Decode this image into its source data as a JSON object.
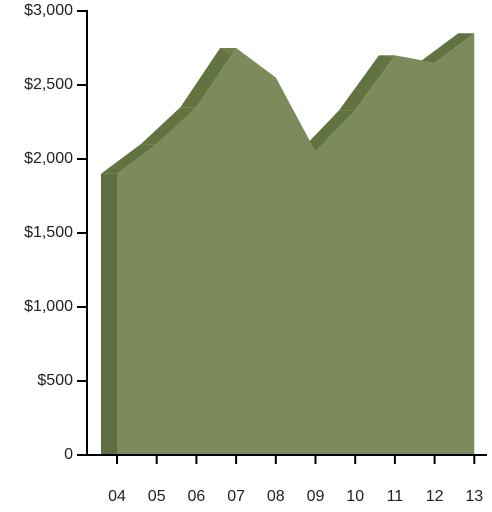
{
  "chart_data": {
    "type": "area",
    "categories": [
      "04",
      "05",
      "06",
      "07",
      "08",
      "09",
      "10",
      "11",
      "12",
      "13"
    ],
    "values": [
      1900,
      2100,
      2350,
      2750,
      2550,
      2050,
      2330,
      2700,
      2650,
      2850
    ],
    "color": "#7d8b5c",
    "ylim": [
      0,
      3000
    ],
    "yticks": [
      0,
      {
        "value": 500,
        "label": "$500"
      },
      {
        "value": 1000,
        "label": "$1,000"
      },
      {
        "value": 1500,
        "label": "$1,500"
      },
      {
        "value": 2000,
        "label": "$2,000"
      },
      {
        "value": 2500,
        "label": "$2,500"
      },
      {
        "value": 3000,
        "label": "$3,000"
      }
    ]
  }
}
